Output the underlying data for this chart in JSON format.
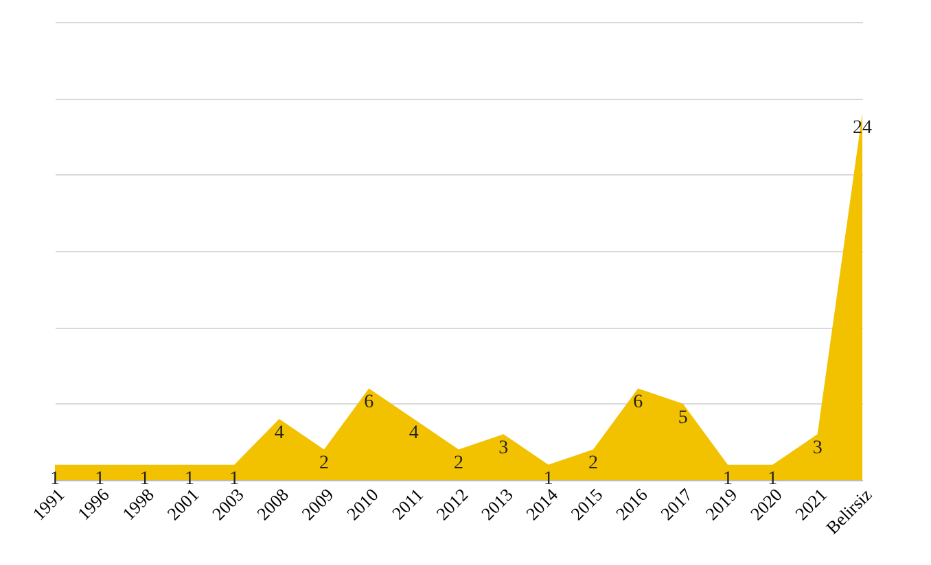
{
  "chart_data": {
    "type": "area",
    "categories": [
      "1991",
      "1996",
      "1998",
      "2001",
      "2003",
      "2008",
      "2009",
      "2010",
      "2011",
      "2012",
      "2013",
      "2014",
      "2015",
      "2016",
      "2017",
      "2019",
      "2020",
      "2021",
      "Belirsiz"
    ],
    "series": [
      {
        "color": "#f2c100",
        "values": [
          1,
          1,
          1,
          1,
          1,
          4,
          2,
          6,
          4,
          2,
          3,
          1,
          2,
          6,
          5,
          1,
          1,
          3,
          24
        ]
      }
    ],
    "ylim": [
      0,
      30
    ],
    "yticks": [
      0,
      5,
      10,
      15,
      20,
      25,
      30
    ],
    "grid": "y",
    "tick_labels": "x",
    "data_labels": true
  }
}
